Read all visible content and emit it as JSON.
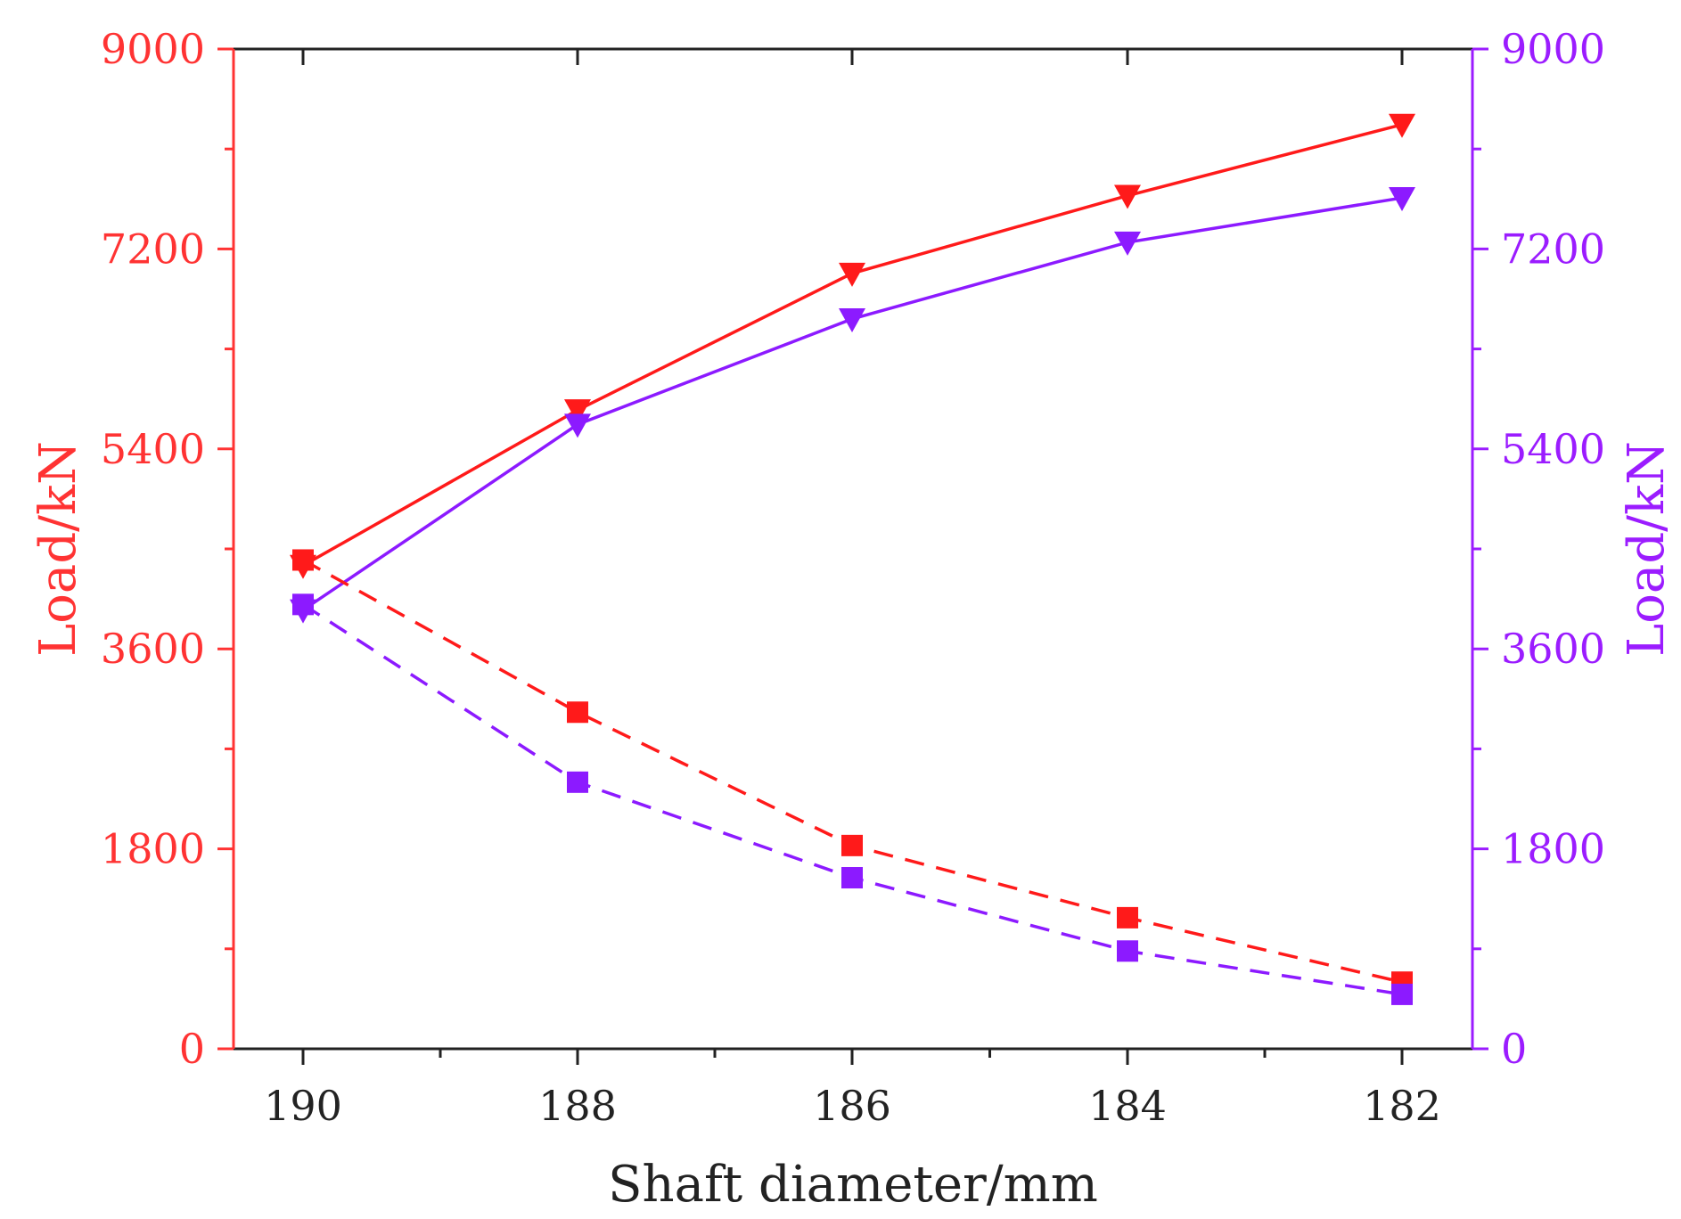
{
  "chart_data": {
    "type": "line",
    "xlabel": "Shaft diameter/mm",
    "ylabel_left": "Load/kN",
    "ylabel_right": "Load/kN",
    "x": [
      190,
      188,
      186,
      184,
      182
    ],
    "x_tick_labels": [
      "190",
      "188",
      "186",
      "184",
      "182"
    ],
    "ylim": [
      0,
      9000
    ],
    "y_ticks": [
      0,
      1800,
      3600,
      5400,
      7200,
      9000
    ],
    "y_tick_labels": [
      "0",
      "1800",
      "3600",
      "5400",
      "7200",
      "9000"
    ],
    "left_axis_color": "#ff3333",
    "right_axis_color": "#9b1cff",
    "series": [
      {
        "name": "red-solid-triangle",
        "axis": "left",
        "color": "#ff1a1a",
        "dashed": false,
        "marker": "triangle-down",
        "values": [
          4350,
          5750,
          6980,
          7680,
          8320
        ]
      },
      {
        "name": "purple-solid-triangle",
        "axis": "right",
        "color": "#8c1aff",
        "dashed": false,
        "marker": "triangle-down",
        "values": [
          3950,
          5620,
          6570,
          7260,
          7660
        ]
      },
      {
        "name": "red-dashed-square",
        "axis": "left",
        "color": "#ff1a1a",
        "dashed": true,
        "marker": "square",
        "values": [
          4400,
          3030,
          1830,
          1180,
          600
        ]
      },
      {
        "name": "purple-dashed-square",
        "axis": "right",
        "color": "#8c1aff",
        "dashed": true,
        "marker": "square",
        "values": [
          4000,
          2400,
          1540,
          880,
          490
        ]
      }
    ]
  }
}
